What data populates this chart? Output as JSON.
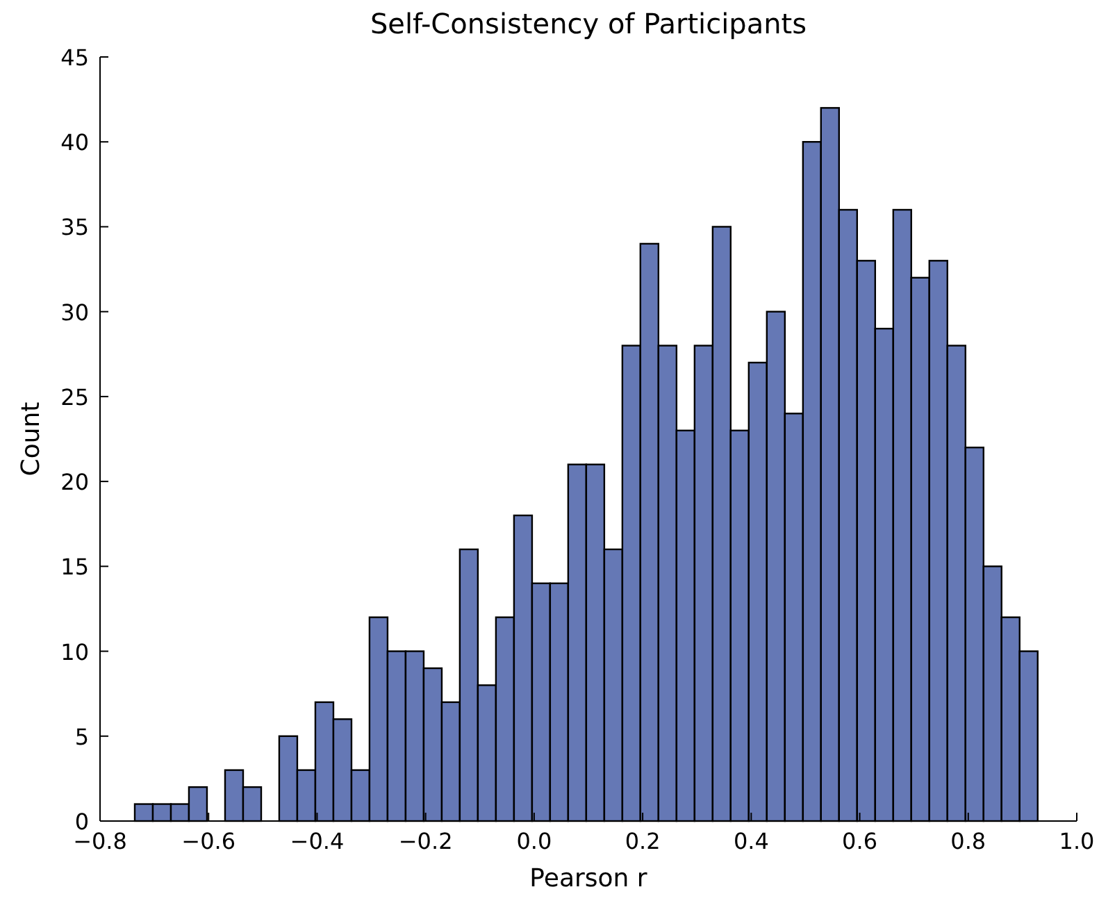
{
  "chart_data": {
    "type": "histogram",
    "title": "Self-Consistency of Participants",
    "xlabel": "Pearson r",
    "ylabel": "Count",
    "color": "#6578b5",
    "bins": [
      -0.736,
      -0.7027,
      -0.6694,
      -0.6362,
      -0.6029,
      -0.5696,
      -0.5363,
      -0.503,
      -0.4698,
      -0.4365,
      -0.4032,
      -0.3699,
      -0.3366,
      -0.3034,
      -0.2701,
      -0.2368,
      -0.2035,
      -0.1702,
      -0.137,
      -0.1037,
      -0.0704,
      -0.0371,
      -0.0038,
      0.0294,
      0.0627,
      0.096,
      0.1293,
      0.1626,
      0.1958,
      0.2291,
      0.2624,
      0.2957,
      0.329,
      0.3622,
      0.3955,
      0.4288,
      0.4621,
      0.4954,
      0.5286,
      0.5619,
      0.5952,
      0.6285,
      0.6618,
      0.695,
      0.7283,
      0.7616,
      0.7949,
      0.8282,
      0.8614,
      0.8947,
      0.928
    ],
    "values": [
      1,
      1,
      1,
      2,
      0,
      3,
      2,
      0,
      5,
      3,
      7,
      6,
      3,
      12,
      10,
      10,
      9,
      7,
      16,
      8,
      12,
      18,
      14,
      14,
      21,
      21,
      16,
      28,
      34,
      28,
      23,
      28,
      35,
      23,
      27,
      30,
      24,
      40,
      42,
      36,
      33,
      29,
      36,
      32,
      33,
      28,
      22,
      15,
      12,
      10
    ],
    "xlim": [
      -0.8,
      1.0
    ],
    "xticks": [
      {
        "value": -0.8,
        "label": "−0.8"
      },
      {
        "value": -0.6,
        "label": "−0.6"
      },
      {
        "value": -0.4,
        "label": "−0.4"
      },
      {
        "value": -0.2,
        "label": "−0.2"
      },
      {
        "value": 0,
        "label": "0.0"
      },
      {
        "value": 0.2,
        "label": "0.2"
      },
      {
        "value": 0.4,
        "label": "0.4"
      },
      {
        "value": 0.6,
        "label": "0.6"
      },
      {
        "value": 0.8,
        "label": "0.8"
      },
      {
        "value": 1,
        "label": "1.0"
      }
    ],
    "ylim": [
      0,
      45
    ],
    "yticks": [
      0,
      5,
      10,
      15,
      20,
      25,
      30,
      35,
      40,
      45
    ],
    "grid": false
  }
}
